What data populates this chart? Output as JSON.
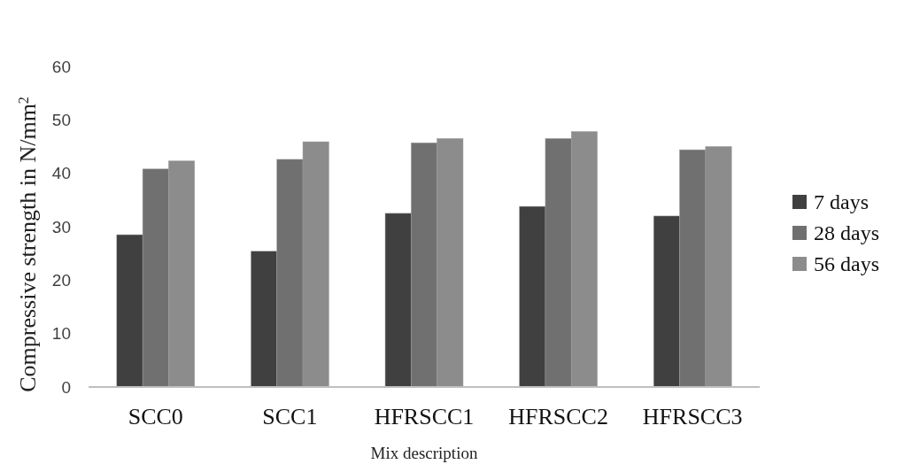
{
  "chart_data": {
    "type": "bar",
    "xlabel": "Mix description",
    "ylabel": "Compressive strength in N/mm$^{2}$",
    "categories": [
      "SCC0",
      "SCC1",
      "HFRSCC1",
      "HFRSCC2",
      "HFRSCC3"
    ],
    "series": [
      {
        "name": "7 days",
        "color": "#404040",
        "values": [
          28.5,
          25.4,
          32.5,
          33.8,
          32.0
        ]
      },
      {
        "name": "28 days",
        "color": "#707070",
        "values": [
          40.8,
          42.6,
          45.7,
          46.5,
          44.4
        ]
      },
      {
        "name": "56 days",
        "color": "#8c8c8c",
        "values": [
          42.3,
          45.9,
          46.5,
          47.8,
          45.0
        ]
      }
    ],
    "ylim": [
      0,
      60
    ],
    "yticks": [
      0,
      10,
      20,
      30,
      40,
      50,
      60
    ],
    "legend": "right"
  }
}
